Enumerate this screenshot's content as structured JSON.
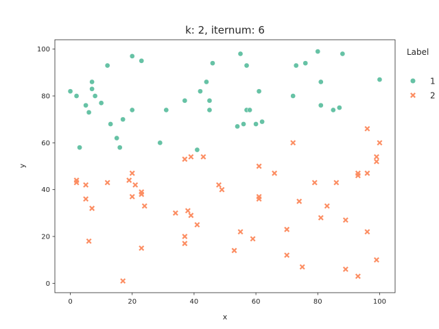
{
  "chart_data": {
    "type": "scatter",
    "title": "k: 2, iternum: 6",
    "xlabel": "x",
    "ylabel": "y",
    "xlim": [
      -5,
      105
    ],
    "ylim": [
      -4,
      104
    ],
    "xticks": [
      0,
      20,
      40,
      60,
      80,
      100
    ],
    "yticks": [
      0,
      20,
      40,
      60,
      80,
      100
    ],
    "grid": false,
    "legend": {
      "title": "Label",
      "placement": "right",
      "entries": [
        "1",
        "2"
      ]
    },
    "series": [
      {
        "name": "1",
        "marker": "circle",
        "color": "#66c2a5",
        "points": [
          [
            0,
            82
          ],
          [
            2,
            80
          ],
          [
            3,
            58
          ],
          [
            5,
            76
          ],
          [
            6,
            73
          ],
          [
            7,
            86
          ],
          [
            7,
            83
          ],
          [
            8,
            80
          ],
          [
            10,
            77
          ],
          [
            12,
            93
          ],
          [
            13,
            68
          ],
          [
            15,
            62
          ],
          [
            16,
            58
          ],
          [
            17,
            70
          ],
          [
            20,
            97
          ],
          [
            20,
            74
          ],
          [
            23,
            95
          ],
          [
            29,
            60
          ],
          [
            31,
            74
          ],
          [
            37,
            78
          ],
          [
            41,
            57
          ],
          [
            42,
            82
          ],
          [
            44,
            86
          ],
          [
            45,
            78
          ],
          [
            45,
            74
          ],
          [
            46,
            94
          ],
          [
            54,
            67
          ],
          [
            55,
            98
          ],
          [
            56,
            68
          ],
          [
            57,
            93
          ],
          [
            57,
            74
          ],
          [
            58,
            74
          ],
          [
            60,
            68
          ],
          [
            61,
            82
          ],
          [
            62,
            69
          ],
          [
            72,
            80
          ],
          [
            73,
            93
          ],
          [
            76,
            94
          ],
          [
            80,
            99
          ],
          [
            81,
            86
          ],
          [
            81,
            76
          ],
          [
            85,
            74
          ],
          [
            87,
            75
          ],
          [
            88,
            98
          ],
          [
            100,
            87
          ]
        ]
      },
      {
        "name": "2",
        "marker": "x",
        "color": "#fc8d62",
        "points": [
          [
            2,
            44
          ],
          [
            2,
            43
          ],
          [
            5,
            42
          ],
          [
            5,
            36
          ],
          [
            6,
            18
          ],
          [
            7,
            32
          ],
          [
            12,
            43
          ],
          [
            17,
            1
          ],
          [
            19,
            44
          ],
          [
            20,
            47
          ],
          [
            20,
            37
          ],
          [
            21,
            42
          ],
          [
            23,
            39
          ],
          [
            23,
            38
          ],
          [
            23,
            15
          ],
          [
            24,
            33
          ],
          [
            34,
            30
          ],
          [
            37,
            53
          ],
          [
            37,
            20
          ],
          [
            37,
            17
          ],
          [
            38,
            31
          ],
          [
            39,
            54
          ],
          [
            39,
            29
          ],
          [
            41,
            25
          ],
          [
            43,
            54
          ],
          [
            48,
            42
          ],
          [
            49,
            40
          ],
          [
            53,
            14
          ],
          [
            55,
            22
          ],
          [
            59,
            19
          ],
          [
            61,
            50
          ],
          [
            61,
            37
          ],
          [
            61,
            36
          ],
          [
            66,
            47
          ],
          [
            70,
            23
          ],
          [
            70,
            12
          ],
          [
            72,
            60
          ],
          [
            74,
            35
          ],
          [
            75,
            7
          ],
          [
            79,
            43
          ],
          [
            81,
            28
          ],
          [
            83,
            33
          ],
          [
            86,
            43
          ],
          [
            89,
            27
          ],
          [
            89,
            6
          ],
          [
            93,
            47
          ],
          [
            93,
            46
          ],
          [
            93,
            3
          ],
          [
            96,
            66
          ],
          [
            96,
            47
          ],
          [
            96,
            22
          ],
          [
            99,
            54
          ],
          [
            99,
            52
          ],
          [
            99,
            10
          ],
          [
            100,
            60
          ]
        ]
      }
    ]
  }
}
